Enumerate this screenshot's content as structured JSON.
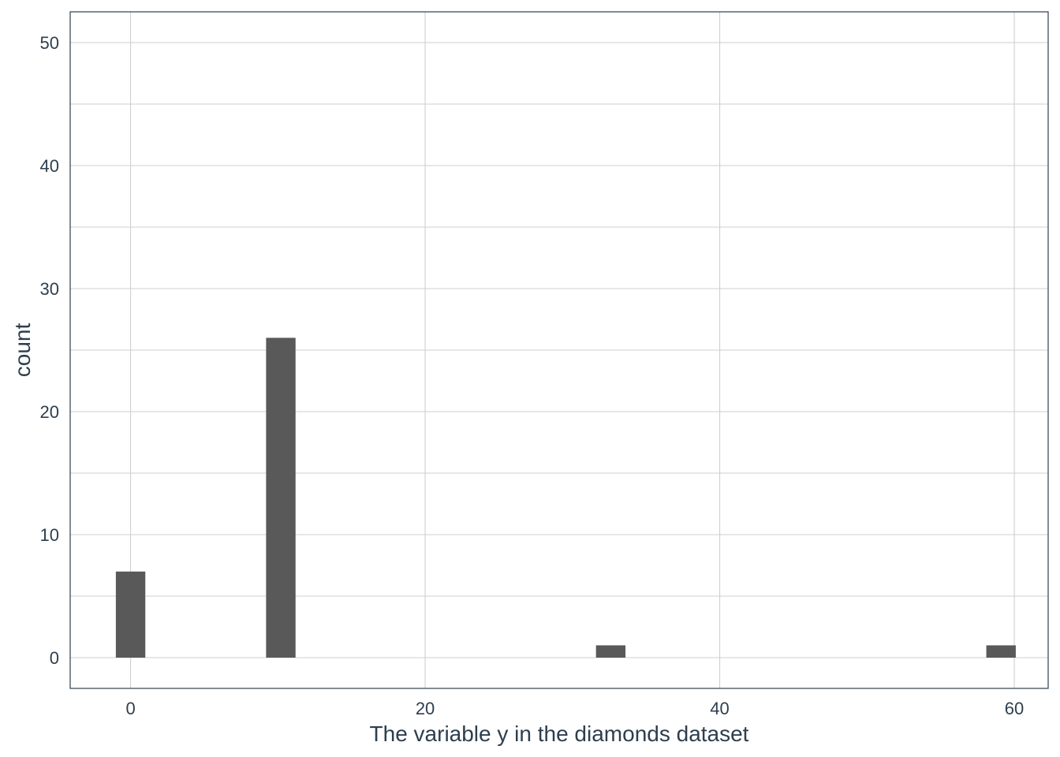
{
  "chart_data": {
    "type": "bar",
    "subtype": "histogram",
    "title": "",
    "xlabel": "The variable y in the diamonds dataset",
    "ylabel": "count",
    "xlim": [
      -4.1,
      62.3
    ],
    "ylim": [
      -2.5,
      52.5
    ],
    "x_ticks": [
      0,
      20,
      40,
      60
    ],
    "y_ticks": [
      0,
      10,
      20,
      30,
      40,
      50
    ],
    "y_minor_ticks": [
      5,
      15,
      25,
      35,
      45
    ],
    "bin_width": 2,
    "bins": [
      {
        "x": 0,
        "count": 7
      },
      {
        "x": 10.2,
        "count": 26
      },
      {
        "x": 32.6,
        "count": 1
      },
      {
        "x": 59.1,
        "count": 1
      }
    ],
    "grid": true,
    "legend": "none",
    "colors": {
      "bar": "#595959",
      "grid": "#cfcfcf",
      "border": "#2e3e4e",
      "text": "#2e3e4e"
    }
  }
}
